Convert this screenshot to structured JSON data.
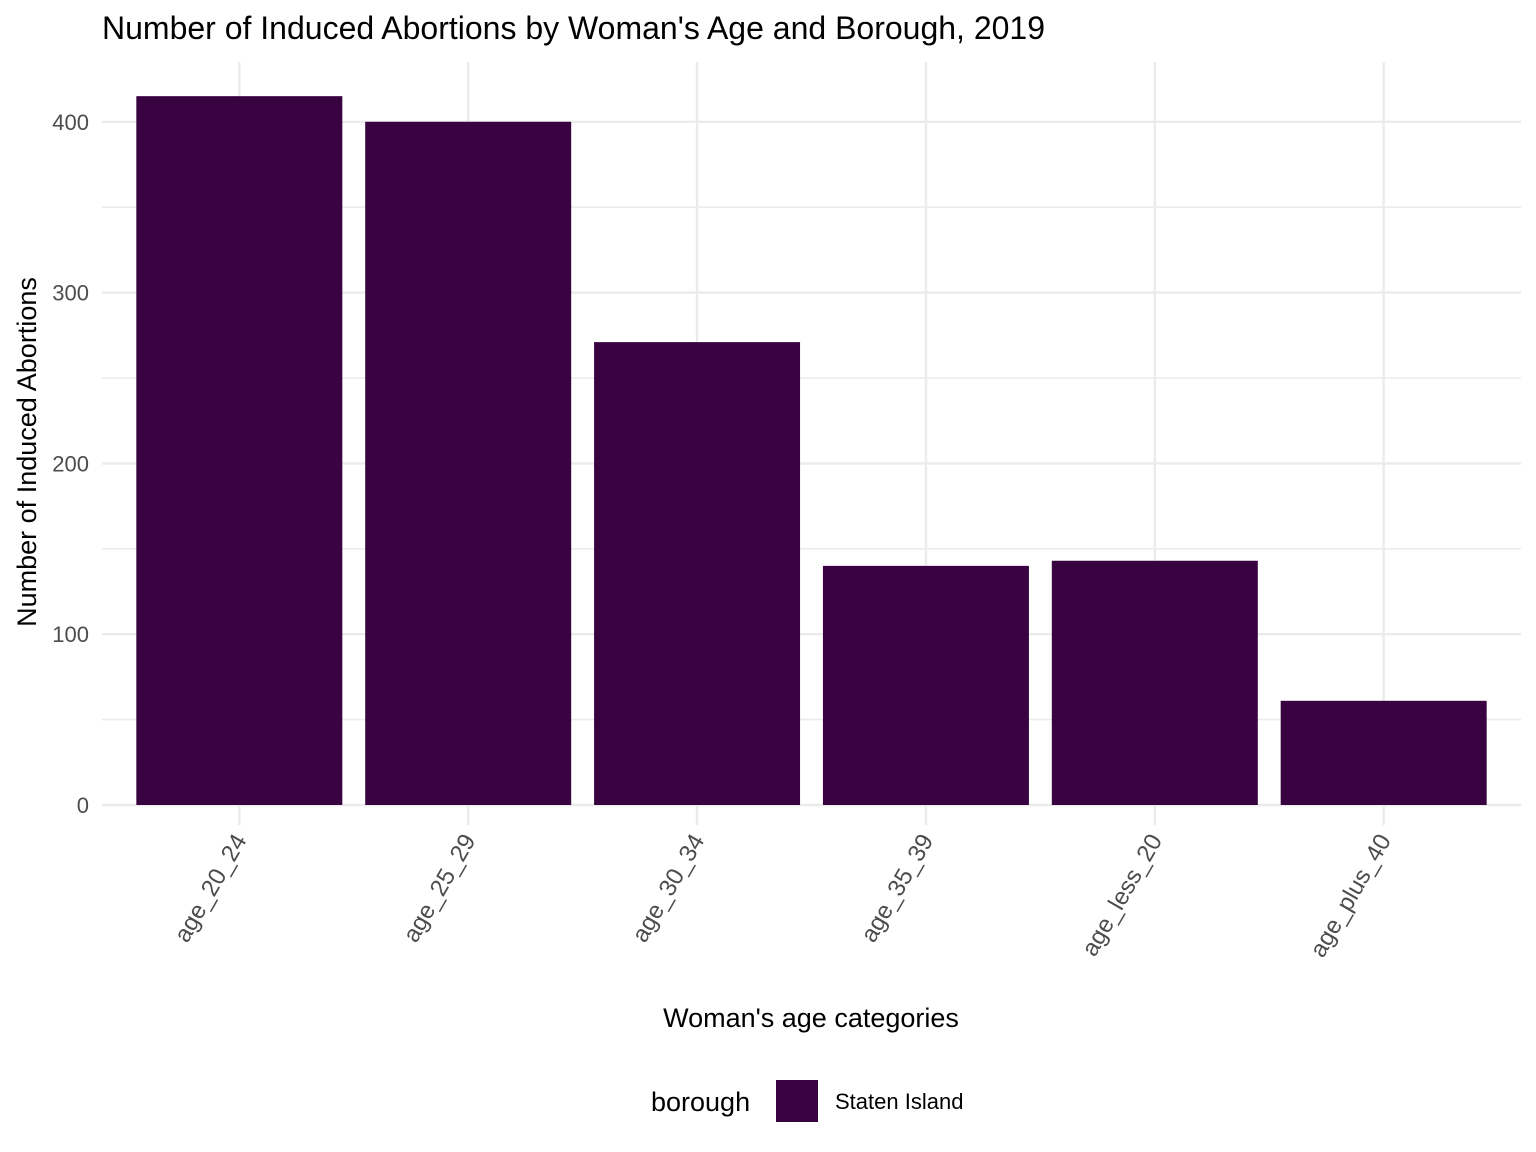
{
  "chart_data": {
    "type": "bar",
    "title": "Number of Induced Abortions by Woman's Age and Borough, 2019",
    "xlabel": "Woman's age categories",
    "ylabel": "Number of Induced Abortions",
    "categories": [
      "age_20_24",
      "age_25_29",
      "age_30_34",
      "age_35_39",
      "age_less_20",
      "age_plus_40"
    ],
    "series": [
      {
        "name": "Staten Island",
        "values": [
          415,
          400,
          271,
          140,
          143,
          61
        ],
        "color": "#380340"
      }
    ],
    "ylim": [
      0,
      435
    ],
    "yticks": [
      0,
      100,
      200,
      300,
      400
    ],
    "ytick_labels": [
      "0",
      "100",
      "200",
      "300",
      "400"
    ],
    "grid": true,
    "legend": {
      "title": "borough",
      "position": "bottom"
    }
  }
}
